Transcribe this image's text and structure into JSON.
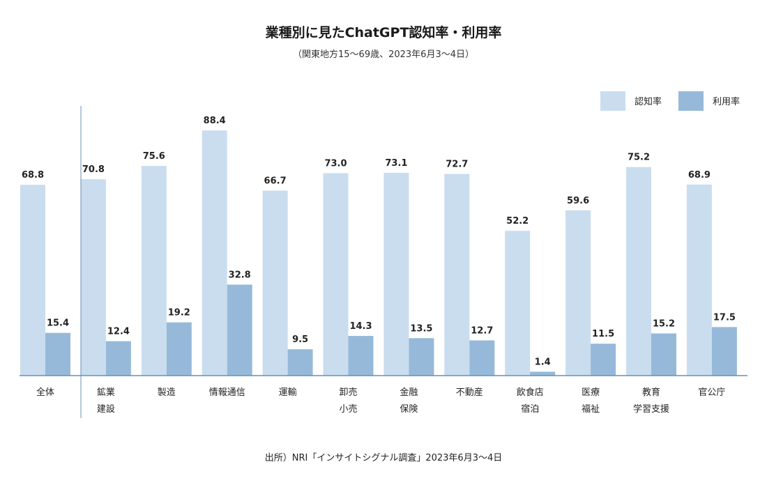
{
  "title": "業種別に見たChatGPT認知率・利用率",
  "subtitle": "（関東地方15〜69歳、2023年6月3〜4日）",
  "source": "出所）NRI「インサイトシグナル調査」2023年6月3〜4日",
  "colors": {
    "series1": "#c9ddef",
    "series2": "#96b9d9",
    "axis": "#6b8fb2"
  },
  "chart_data": {
    "type": "bar",
    "categories": [
      [
        "全体"
      ],
      [
        "鉱業",
        "建設"
      ],
      [
        "製造"
      ],
      [
        "情報通信"
      ],
      [
        "運輸"
      ],
      [
        "卸売",
        "小売"
      ],
      [
        "金融",
        "保険"
      ],
      [
        "不動産"
      ],
      [
        "飲食店",
        "宿泊"
      ],
      [
        "医療",
        "福祉"
      ],
      [
        "教育",
        "学習支援"
      ],
      [
        "官公庁"
      ]
    ],
    "series": [
      {
        "name": "認知率",
        "values": [
          68.8,
          70.8,
          75.6,
          88.4,
          66.7,
          73.0,
          73.1,
          72.7,
          52.2,
          59.6,
          75.2,
          68.9
        ]
      },
      {
        "name": "利用率",
        "values": [
          15.4,
          12.4,
          19.2,
          32.8,
          9.5,
          14.3,
          13.5,
          12.7,
          1.4,
          11.5,
          15.2,
          17.5
        ]
      }
    ],
    "value_labels": {
      "series1": [
        "68.8",
        "70.8",
        "75.6",
        "88.4",
        "66.7",
        "73.0",
        "73.1",
        "72.7",
        "52.2",
        "59.6",
        "75.2",
        "68.9"
      ],
      "series2": [
        "15.4",
        "12.4",
        "19.2",
        "32.8",
        "9.5",
        "14.3",
        "13.5",
        "12.7",
        "1.4",
        "11.5",
        "15.2",
        "17.5"
      ]
    },
    "ylim": [
      0,
      100
    ],
    "grid": false,
    "legend": "top-right"
  }
}
